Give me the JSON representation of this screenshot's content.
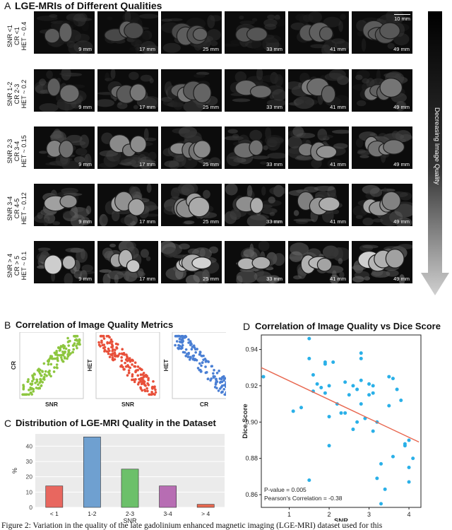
{
  "panelA": {
    "letter": "A",
    "title": "LGE-MRIs of Different Qualities",
    "scale_label": "10 mm",
    "side_arrow_label": "Decreasing Image Quality",
    "slice_labels": [
      "9 mm",
      "17 mm",
      "25 mm",
      "33 mm",
      "41 mm",
      "49 mm"
    ],
    "rows": [
      {
        "l1": "SNR <1",
        "l2": "CR <1",
        "l3": "HET ~ 0.4",
        "brightness": 0.3
      },
      {
        "l1": "SNR 1-2",
        "l2": "CR 2-3",
        "l3": "HET ~ 0.2",
        "brightness": 0.42
      },
      {
        "l1": "SNR 2-3",
        "l2": "CR 3-4",
        "l3": "HET ~ 0.15",
        "brightness": 0.55
      },
      {
        "l1": "SNR 3-4",
        "l2": "CR 4-5",
        "l3": "HET ~ 0.12",
        "brightness": 0.7
      },
      {
        "l1": "SNR > 4",
        "l2": "CR > 5",
        "l3": "HET ~ 0.1",
        "brightness": 0.9
      }
    ]
  },
  "panelB": {
    "letter": "B",
    "title": "Correlation of Image Quality Metrics",
    "plots": [
      {
        "xlabel": "SNR",
        "ylabel": "CR",
        "color": "#8dc63f",
        "trend": "positive"
      },
      {
        "xlabel": "SNR",
        "ylabel": "HET",
        "color": "#e8503a",
        "trend": "negative"
      },
      {
        "xlabel": "CR",
        "ylabel": "HET",
        "color": "#4a7fd4",
        "trend": "negative"
      }
    ]
  },
  "panelC": {
    "letter": "C",
    "title": "Distribution of LGE-MRI Quality in the Dataset",
    "chart_data": {
      "type": "bar",
      "categories": [
        "< 1",
        "1-2",
        "2-3",
        "3-4",
        "> 4"
      ],
      "values": [
        14,
        46,
        25,
        14,
        2
      ],
      "colors": [
        "#e8675f",
        "#6fa0d0",
        "#6cc06a",
        "#b76db3",
        "#e6674f"
      ],
      "xlabel": "SNR",
      "ylabel": "%",
      "ylim": [
        0,
        48
      ],
      "yticks": [
        "0",
        "10",
        "20",
        "30",
        "40"
      ],
      "grid": true
    }
  },
  "panelD": {
    "letter": "D",
    "title": "Correlation of Image Quality vs Dice Score",
    "chart_data": {
      "type": "scatter",
      "xlabel": "SNR",
      "ylabel": "Dice Score",
      "xlim": [
        0.3,
        4.3
      ],
      "ylim": [
        0.853,
        0.948
      ],
      "xticks": [
        "1",
        "2",
        "3",
        "4"
      ],
      "yticks": [
        "0.86",
        "0.88",
        "0.90",
        "0.92",
        "0.94"
      ],
      "points": [
        [
          0.2,
          0.925
        ],
        [
          1.1,
          0.906
        ],
        [
          1.3,
          0.908
        ],
        [
          1.5,
          0.946
        ],
        [
          1.5,
          0.935
        ],
        [
          1.6,
          0.926
        ],
        [
          1.6,
          0.917
        ],
        [
          1.7,
          0.921
        ],
        [
          1.8,
          0.919
        ],
        [
          1.9,
          0.933
        ],
        [
          1.9,
          0.932
        ],
        [
          1.9,
          0.916
        ],
        [
          2.0,
          0.92
        ],
        [
          2.0,
          0.903
        ],
        [
          2.1,
          0.933
        ],
        [
          2.2,
          0.91
        ],
        [
          2.3,
          0.905
        ],
        [
          2.4,
          0.922
        ],
        [
          2.4,
          0.905
        ],
        [
          2.5,
          0.915
        ],
        [
          2.6,
          0.92
        ],
        [
          2.6,
          0.896
        ],
        [
          2.7,
          0.918
        ],
        [
          2.7,
          0.9
        ],
        [
          2.8,
          0.938
        ],
        [
          2.8,
          0.935
        ],
        [
          2.8,
          0.923
        ],
        [
          2.8,
          0.91
        ],
        [
          2.9,
          0.902
        ],
        [
          3.0,
          0.921
        ],
        [
          3.0,
          0.915
        ],
        [
          3.1,
          0.92
        ],
        [
          3.1,
          0.916
        ],
        [
          3.1,
          0.895
        ],
        [
          3.2,
          0.9
        ],
        [
          3.2,
          0.869
        ],
        [
          3.3,
          0.855
        ],
        [
          3.3,
          0.877
        ],
        [
          3.4,
          0.863
        ],
        [
          3.5,
          0.925
        ],
        [
          3.5,
          0.909
        ],
        [
          3.6,
          0.924
        ],
        [
          3.6,
          0.881
        ],
        [
          3.7,
          0.918
        ],
        [
          3.8,
          0.912
        ],
        [
          3.9,
          0.888
        ],
        [
          3.9,
          0.887
        ],
        [
          4.0,
          0.89
        ],
        [
          4.0,
          0.875
        ],
        [
          4.0,
          0.867
        ],
        [
          4.1,
          0.88
        ],
        [
          2.0,
          0.887
        ],
        [
          1.5,
          0.868
        ]
      ],
      "trendline": [
        [
          0.3,
          0.93
        ],
        [
          4.25,
          0.889
        ]
      ],
      "annotations": [
        "P-value = 0.005",
        "Pearson's Correlation = -0.38"
      ]
    }
  },
  "caption": "Figure 2: Variation in the quality of the late gadolinium enhanced magnetic imaging (LGE-MRI) dataset used for this"
}
